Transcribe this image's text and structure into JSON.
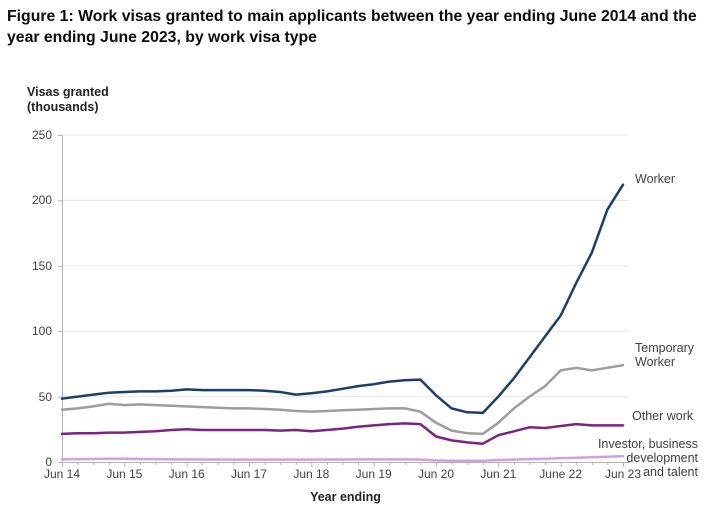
{
  "figure_title": "Figure 1: Work visas granted to main applicants between the year ending June 2014 and the year ending June 2023, by work visa type",
  "chart_data": {
    "type": "line",
    "title": "Figure 1: Work visas granted to main applicants between the year ending June 2014 and the year ending June 2023, by work visa type",
    "ylabel": "Visas granted (thousands)",
    "ylabel_display": "Visas granted\n(thousands)",
    "xlabel": "Year ending",
    "ylim": [
      0,
      250
    ],
    "yticks": [
      0,
      50,
      100,
      150,
      200,
      250
    ],
    "grid": "horizontal",
    "legend_position": "right-of-line-ends",
    "x_tick_labels": [
      "Jun 14",
      "Jun 15",
      "Jun 16",
      "Jun 17",
      "Jun 18",
      "Jun 19",
      "Jun 20",
      "Jun 21",
      "June 22",
      "Jun 23"
    ],
    "x_points": [
      "Jun 14",
      "Sep 14",
      "Dec 14",
      "Mar 15",
      "Jun 15",
      "Sep 15",
      "Dec 15",
      "Mar 16",
      "Jun 16",
      "Sep 16",
      "Dec 16",
      "Mar 17",
      "Jun 17",
      "Sep 17",
      "Dec 17",
      "Mar 18",
      "Jun 18",
      "Sep 18",
      "Dec 18",
      "Mar 19",
      "Jun 19",
      "Sep 19",
      "Dec 19",
      "Mar 20",
      "Jun 20",
      "Sep 20",
      "Dec 20",
      "Mar 21",
      "Jun 21",
      "Sep 21",
      "Dec 21",
      "Mar 22",
      "Jun 22",
      "Sep 22",
      "Dec 22",
      "Mar 23",
      "Jun 23"
    ],
    "series": [
      {
        "name": "Worker",
        "color": "#1d3d6b",
        "values": [
          48.5,
          50,
          51.5,
          53,
          53.5,
          54,
          54,
          54.5,
          55.5,
          55,
          55,
          55,
          55,
          54.5,
          53.5,
          51.5,
          52.5,
          54,
          56,
          58,
          59.5,
          61.5,
          62.5,
          63,
          51,
          41,
          38,
          37.5,
          50,
          64,
          80,
          96,
          112,
          137,
          160,
          193,
          212
        ]
      },
      {
        "name": "Temporary Worker",
        "color": "#9d9d9d",
        "values": [
          40,
          41,
          42.5,
          44.5,
          43.5,
          44,
          43.5,
          43,
          42.5,
          42,
          41.5,
          41,
          41,
          40.5,
          40,
          39,
          38.5,
          39,
          39.5,
          40,
          40.5,
          41,
          41,
          38.5,
          30,
          24,
          22,
          21.5,
          30,
          41,
          50,
          58,
          70,
          72,
          70,
          72,
          74
        ]
      },
      {
        "name": "Other work",
        "color": "#7b2382",
        "values": [
          21.5,
          22,
          22,
          22.5,
          22.5,
          23,
          23.5,
          24.5,
          25,
          24.5,
          24.5,
          24.5,
          24.5,
          24.5,
          24,
          24.5,
          23.5,
          24.5,
          25.5,
          27,
          28,
          29,
          29.5,
          29,
          19.5,
          16.5,
          15,
          14,
          20.5,
          23.5,
          26.5,
          26,
          27.5,
          29,
          28,
          28,
          28
        ]
      },
      {
        "name": "Investor, business development and talent",
        "color": "#d2a0da",
        "values": [
          2,
          2.2,
          2.3,
          2.5,
          2.5,
          2.3,
          2.2,
          2,
          2,
          1.9,
          1.9,
          1.8,
          1.8,
          1.8,
          1.8,
          1.8,
          1.8,
          1.9,
          1.9,
          2,
          2,
          2,
          2,
          1.8,
          1.2,
          1,
          0.9,
          1,
          1.5,
          1.8,
          2.2,
          2.5,
          3,
          3.3,
          3.6,
          4,
          4.5
        ]
      }
    ],
    "annotations": {
      "worker": "Worker",
      "temporary_worker": "Temporary\nWorker",
      "other_work": "Other work",
      "investor": "Investor, business\ndevelopment\nand talent"
    },
    "style": {
      "grid_color": "#e7e7e7",
      "axis_color": "#b3b3b3",
      "tick_text_color": "#404040",
      "title_color": "#0b0c0c",
      "line_width": 2.5
    }
  }
}
